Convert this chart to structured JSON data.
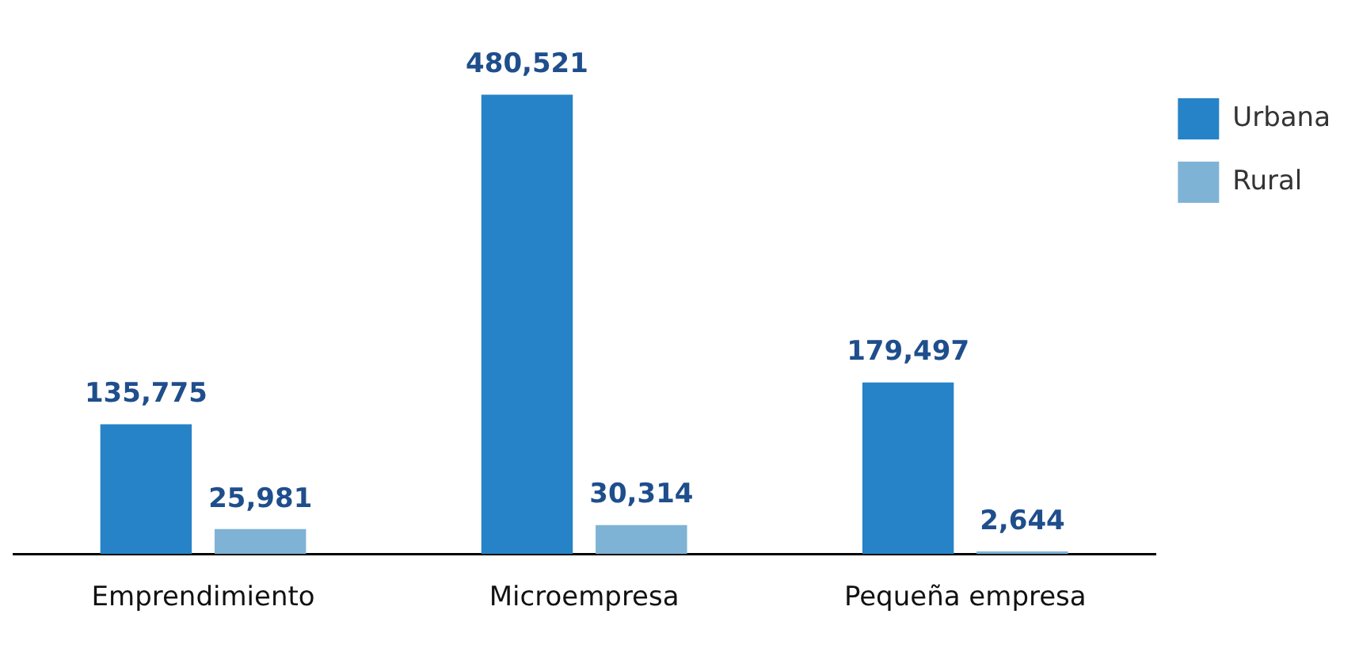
{
  "chart_data": {
    "type": "bar",
    "categories": [
      "Emprendimiento",
      "Microempresa",
      "Pequeña empresa"
    ],
    "series": [
      {
        "name": "Urbana",
        "color": "#2783c7",
        "values": [
          135775,
          480521,
          179497
        ],
        "value_labels": [
          "135,775",
          "480,521",
          "179,497"
        ]
      },
      {
        "name": "Rural",
        "color": "#7fb3d5",
        "values": [
          25981,
          30314,
          2644
        ],
        "value_labels": [
          "25,981",
          "30,314",
          "2,644"
        ]
      }
    ],
    "legend": "top right",
    "grid": false
  }
}
